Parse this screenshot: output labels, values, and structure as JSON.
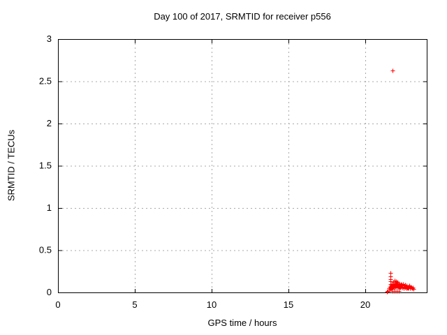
{
  "colors": {
    "marker": "#ff0000",
    "grid": "#a8a8a8",
    "axis": "#000000",
    "background": "#ffffff"
  },
  "chart_data": {
    "type": "scatter",
    "title": "Day 100 of 2017, SRMTID for receiver p556",
    "xlabel": "GPS time / hours",
    "ylabel": "SRMTID / TECUs",
    "xlim": [
      0,
      24
    ],
    "ylim": [
      0,
      3
    ],
    "xticks": [
      0,
      5,
      10,
      15,
      20
    ],
    "yticks": [
      0,
      0.5,
      1,
      1.5,
      2,
      2.5,
      3
    ],
    "grid": true,
    "legend": false,
    "marker": "plus",
    "series": [
      {
        "name": "SRMTID",
        "color": "#ff0000",
        "points": [
          [
            21.77,
            2.63
          ],
          [
            21.64,
            0.23
          ],
          [
            21.64,
            0.19
          ],
          [
            21.65,
            0.16
          ],
          [
            21.64,
            0.13
          ],
          [
            21.65,
            0.1
          ],
          [
            21.41,
            0.01
          ],
          [
            21.44,
            0.02
          ],
          [
            21.55,
            0.05
          ],
          [
            21.59,
            0.03
          ],
          [
            21.61,
            0.07
          ],
          [
            21.64,
            0.05
          ],
          [
            21.68,
            0.04
          ],
          [
            21.7,
            0.08
          ],
          [
            21.72,
            0.06
          ],
          [
            21.74,
            0.1
          ],
          [
            21.75,
            0.02
          ],
          [
            21.76,
            0.05
          ],
          [
            21.78,
            0.08
          ],
          [
            21.8,
            0.12
          ],
          [
            21.82,
            0.07
          ],
          [
            21.84,
            0.1
          ],
          [
            21.86,
            0.06
          ],
          [
            21.88,
            0.09
          ],
          [
            21.9,
            0.14
          ],
          [
            21.9,
            0.02
          ],
          [
            21.92,
            0.08
          ],
          [
            21.94,
            0.11
          ],
          [
            21.96,
            0.07
          ],
          [
            21.98,
            0.1
          ],
          [
            22.0,
            0.13
          ],
          [
            22.02,
            0.08
          ],
          [
            22.04,
            0.06
          ],
          [
            22.05,
            0.02
          ],
          [
            22.06,
            0.1
          ],
          [
            22.08,
            0.08
          ],
          [
            22.1,
            0.12
          ],
          [
            22.12,
            0.07
          ],
          [
            22.14,
            0.09
          ],
          [
            22.16,
            0.06
          ],
          [
            22.18,
            0.08
          ],
          [
            22.2,
            0.11
          ],
          [
            22.2,
            0.02
          ],
          [
            22.22,
            0.07
          ],
          [
            22.24,
            0.09
          ],
          [
            22.26,
            0.06
          ],
          [
            22.28,
            0.08
          ],
          [
            22.3,
            0.1
          ],
          [
            22.33,
            0.07
          ],
          [
            22.36,
            0.09
          ],
          [
            22.39,
            0.06
          ],
          [
            22.42,
            0.08
          ],
          [
            22.45,
            0.1
          ],
          [
            22.48,
            0.07
          ],
          [
            22.51,
            0.05
          ],
          [
            22.54,
            0.08
          ],
          [
            22.57,
            0.06
          ],
          [
            22.6,
            0.09
          ],
          [
            22.63,
            0.07
          ],
          [
            22.66,
            0.05
          ],
          [
            22.69,
            0.08
          ],
          [
            22.72,
            0.06
          ],
          [
            22.75,
            0.07
          ],
          [
            22.78,
            0.05
          ],
          [
            22.81,
            0.07
          ],
          [
            22.84,
            0.06
          ],
          [
            22.87,
            0.08
          ],
          [
            22.9,
            0.06
          ],
          [
            22.93,
            0.05
          ],
          [
            22.96,
            0.07
          ],
          [
            23.0,
            0.06
          ],
          [
            23.05,
            0.05
          ],
          [
            23.1,
            0.06
          ],
          [
            23.15,
            0.04
          ]
        ]
      }
    ]
  }
}
